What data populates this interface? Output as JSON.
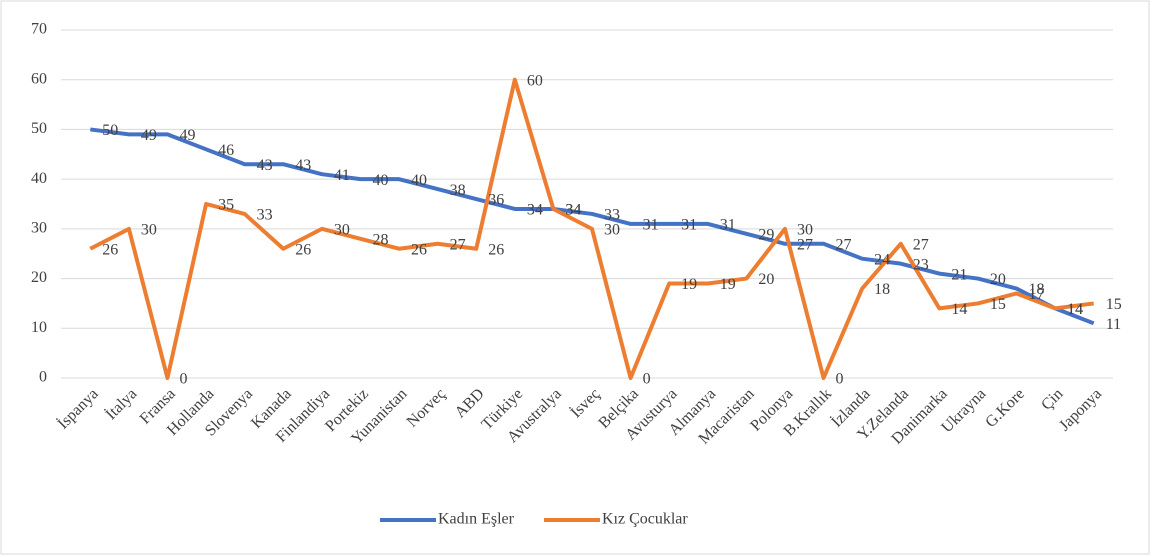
{
  "chart_data": {
    "type": "line",
    "categories": [
      "İspanya",
      "İtalya",
      "Fransa",
      "Hollanda",
      "Slovenya",
      "Kanada",
      "Finlandiya",
      "Portekiz",
      "Yunanistan",
      "Norveç",
      "ABD",
      "Türkiye",
      "Avustralya",
      "İsveç",
      "Belçika",
      "Avusturya",
      "Almanya",
      "Macaristan",
      "Polonya",
      "B.Krallık",
      "İzlanda",
      "Y.Zelanda",
      "Danimarka",
      "Ukrayna",
      "G.Kore",
      "Çin",
      "Japonya"
    ],
    "series": [
      {
        "name": "Kadın Eşler",
        "color": "#4472c4",
        "values": [
          50,
          49,
          49,
          46,
          43,
          43,
          41,
          40,
          40,
          38,
          36,
          34,
          34,
          33,
          31,
          31,
          31,
          29,
          27,
          27,
          24,
          23,
          21,
          20,
          18,
          14,
          11
        ]
      },
      {
        "name": "Kız Çocuklar",
        "color": "#ed7d31",
        "values": [
          26,
          30,
          0,
          35,
          33,
          26,
          30,
          28,
          26,
          27,
          26,
          60,
          34,
          30,
          0,
          19,
          19,
          20,
          30,
          0,
          18,
          27,
          14,
          15,
          17,
          14,
          15
        ]
      }
    ],
    "ylim": [
      0,
      70
    ],
    "yticks": [
      0,
      10,
      20,
      30,
      40,
      50,
      60,
      70
    ],
    "grid": true,
    "legend": "bottom"
  }
}
